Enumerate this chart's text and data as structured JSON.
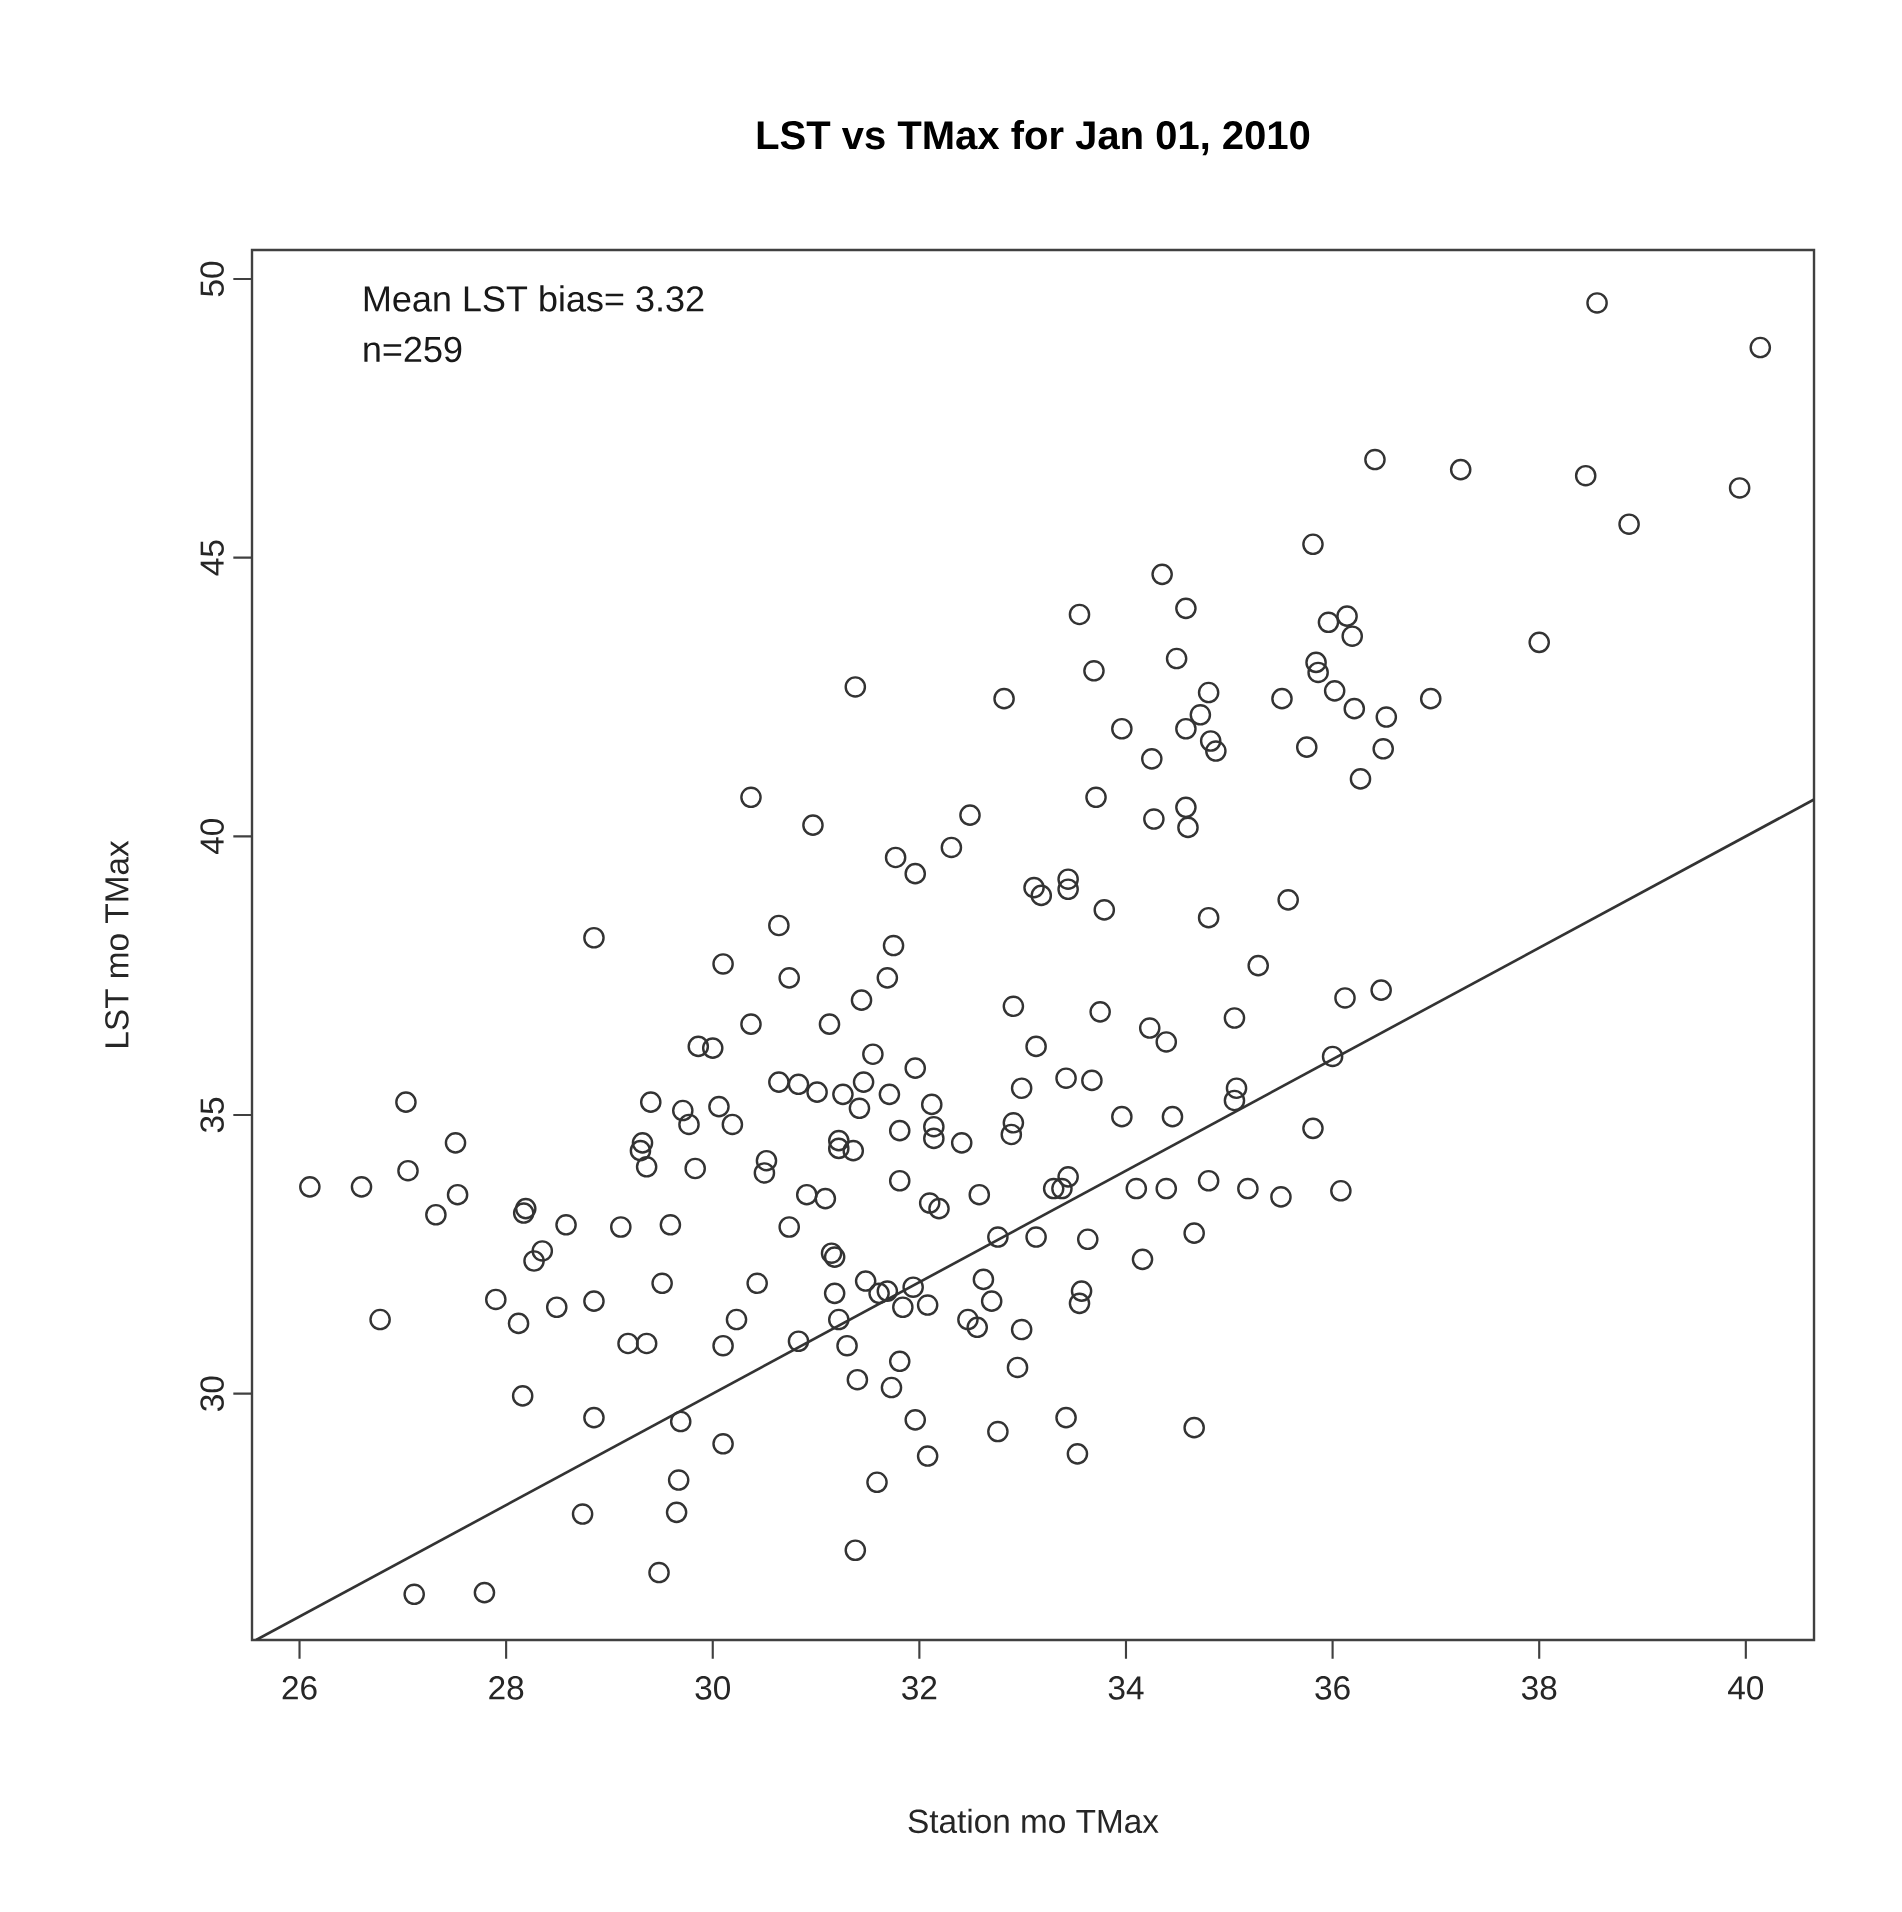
{
  "chart_data": {
    "type": "scatter",
    "title": "LST vs  TMax for Jan 01, 2010",
    "xlabel": "Station mo TMax",
    "ylabel": "LST mo TMax",
    "annotations": [
      "Mean LST bias= 3.32",
      "n=259"
    ],
    "xlim": [
      25.54,
      40.66
    ],
    "ylim": [
      25.58,
      50.52
    ],
    "xticks": [
      26,
      28,
      30,
      32,
      34,
      36,
      38,
      40
    ],
    "yticks": [
      30,
      35,
      40,
      45,
      50
    ],
    "grid": false,
    "series": [
      {
        "color": "#333333",
        "marker": "circle",
        "x": [
          38.56,
          40.14,
          36.41,
          37.24,
          38.45,
          39.94,
          38.87,
          35.81,
          34.35,
          34.58,
          33.55,
          35.96,
          36.14,
          36.19,
          38.0,
          34.49,
          33.69,
          35.84,
          35.86,
          34.8,
          35.51,
          36.02,
          36.21,
          36.52,
          36.95,
          34.72,
          33.96,
          34.58,
          34.82,
          34.87,
          34.25,
          35.75,
          36.49,
          36.27,
          33.71,
          34.27,
          34.58,
          34.6,
          33.11,
          33.18,
          33.44,
          33.44,
          33.79,
          34.8,
          35.57,
          31.38,
          32.82,
          30.37,
          30.97,
          32.49,
          32.31,
          31.77,
          31.96,
          28.85,
          30.64,
          31.75,
          30.1,
          30.74,
          31.69,
          31.44,
          30.37,
          31.13,
          32.91,
          29.86,
          30.0,
          31.55,
          31.96,
          33.13,
          27.03,
          27.51,
          27.05,
          27.53,
          27.32,
          26.1,
          26.6,
          26.78,
          29.4,
          29.71,
          29.77,
          30.06,
          30.19,
          30.64,
          30.83,
          31.01,
          31.26,
          31.46,
          31.42,
          31.71,
          32.12,
          32.14,
          32.14,
          32.41,
          31.81,
          32.99,
          32.91,
          32.89,
          29.32,
          29.3,
          29.36,
          29.83,
          30.52,
          30.5,
          31.22,
          31.22,
          31.36,
          31.81,
          32.1,
          32.19,
          32.58,
          33.3,
          30.91,
          31.09,
          28.19,
          28.17,
          28.58,
          29.11,
          29.59,
          30.74,
          28.35,
          28.27,
          31.15,
          31.18,
          32.76,
          33.13,
          27.9,
          28.12,
          28.49,
          28.85,
          29.51,
          30.43,
          30.23,
          29.18,
          29.36,
          30.1,
          30.83,
          31.48,
          31.61,
          31.69,
          31.94,
          31.84,
          32.08,
          31.18,
          31.22,
          31.3,
          32.62,
          32.7,
          32.47,
          32.56,
          32.99,
          32.95,
          31.81,
          31.73,
          31.4,
          31.96,
          32.08,
          32.76,
          28.16,
          28.85,
          29.69,
          30.1,
          29.67,
          29.65,
          28.74,
          31.59,
          31.38,
          29.48,
          27.11,
          27.79,
          35.28,
          36.12,
          36.47,
          33.75,
          34.23,
          34.39,
          35.05,
          33.42,
          33.67,
          35.07,
          35.05,
          36.0,
          33.96,
          34.45,
          35.81,
          33.44,
          33.38,
          34.1,
          34.39,
          34.8,
          35.18,
          35.5,
          36.08,
          33.63,
          34.66,
          34.16,
          33.57,
          33.55,
          33.42,
          33.53,
          34.66
        ],
        "values": [
          49.57,
          48.77,
          46.76,
          46.58,
          46.47,
          46.25,
          45.6,
          45.24,
          44.7,
          44.09,
          43.98,
          43.84,
          43.95,
          43.59,
          43.48,
          43.19,
          42.97,
          43.12,
          42.94,
          42.58,
          42.47,
          42.61,
          42.29,
          42.14,
          42.47,
          42.18,
          41.93,
          41.93,
          41.71,
          41.53,
          41.39,
          41.6,
          41.57,
          41.03,
          40.7,
          40.31,
          40.52,
          40.16,
          39.08,
          38.94,
          39.23,
          39.05,
          38.68,
          38.54,
          38.86,
          42.68,
          42.47,
          40.7,
          40.2,
          40.38,
          39.8,
          39.62,
          39.33,
          38.18,
          38.4,
          38.04,
          37.71,
          37.46,
          37.46,
          37.06,
          36.63,
          36.63,
          36.95,
          36.23,
          36.2,
          36.09,
          35.84,
          36.23,
          35.23,
          34.5,
          34.0,
          33.57,
          33.21,
          33.71,
          33.71,
          31.33,
          35.23,
          35.08,
          34.83,
          35.15,
          34.83,
          35.59,
          35.55,
          35.41,
          35.37,
          35.59,
          35.12,
          35.37,
          35.19,
          34.79,
          34.58,
          34.5,
          34.72,
          35.48,
          34.86,
          34.65,
          34.5,
          34.36,
          34.07,
          34.04,
          34.18,
          33.96,
          34.54,
          34.4,
          34.36,
          33.82,
          33.42,
          33.32,
          33.57,
          33.68,
          33.57,
          33.5,
          33.32,
          33.24,
          33.03,
          32.99,
          33.03,
          32.99,
          32.56,
          32.38,
          32.52,
          32.45,
          32.81,
          32.81,
          31.69,
          31.26,
          31.55,
          31.66,
          31.98,
          31.98,
          31.33,
          30.9,
          30.9,
          30.86,
          30.94,
          32.02,
          31.8,
          31.84,
          31.91,
          31.55,
          31.59,
          31.8,
          31.33,
          30.86,
          32.05,
          31.66,
          31.33,
          31.19,
          31.15,
          30.47,
          30.58,
          30.11,
          30.25,
          29.53,
          28.88,
          29.32,
          29.96,
          29.57,
          29.5,
          29.1,
          28.45,
          27.87,
          27.84,
          28.41,
          27.19,
          26.79,
          26.4,
          26.43,
          37.68,
          37.1,
          37.24,
          36.85,
          36.56,
          36.31,
          36.74,
          35.66,
          35.62,
          35.48,
          35.26,
          36.05,
          34.97,
          34.97,
          34.76,
          33.89,
          33.68,
          33.68,
          33.68,
          33.82,
          33.68,
          33.53,
          33.64,
          32.77,
          32.88,
          32.41,
          31.84,
          31.62,
          29.57,
          28.92,
          29.39
        ]
      },
      {
        "type": "line",
        "color": "#333333",
        "marker": "none",
        "line_style": "solid",
        "x": [
          25.58,
          40.66
        ],
        "values": [
          25.58,
          40.66
        ]
      }
    ]
  }
}
